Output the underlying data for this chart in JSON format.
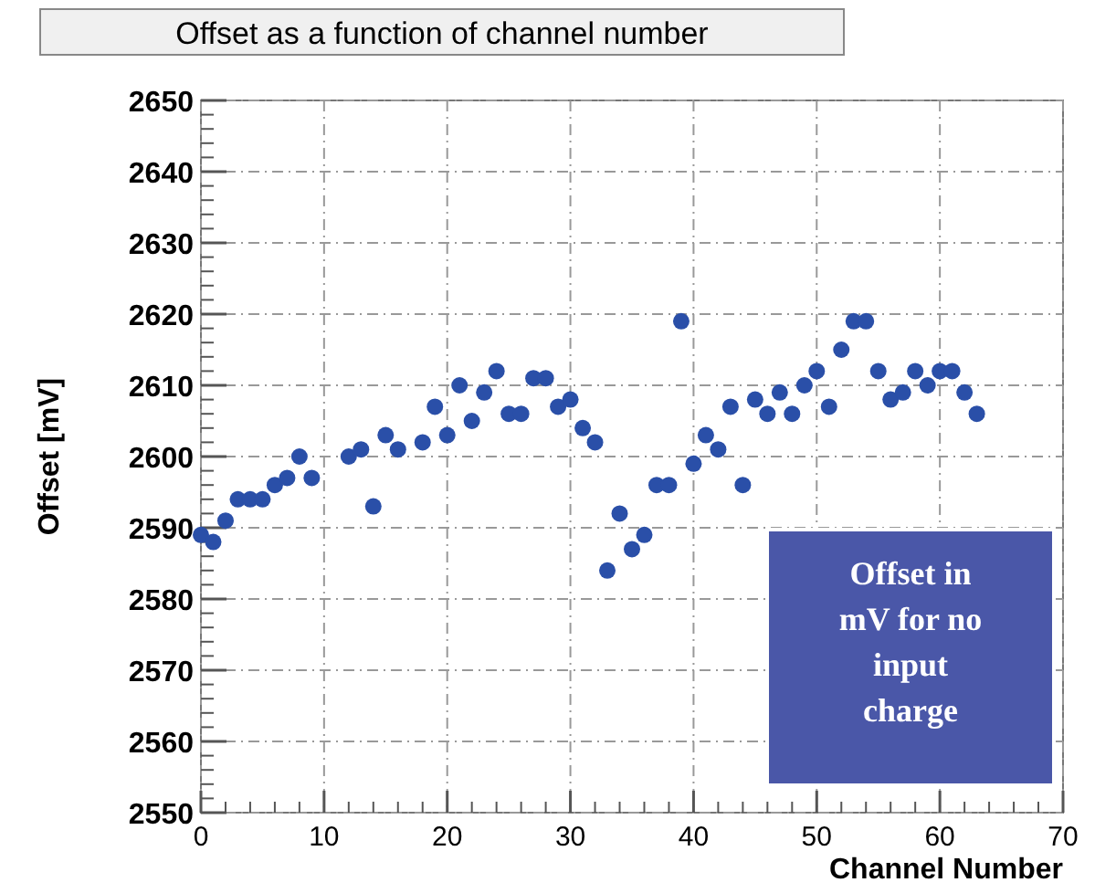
{
  "chart_data": {
    "type": "scatter",
    "title": "Offset as a function of channel number",
    "xlabel": "Channel Number",
    "ylabel": "Offset [mV]",
    "x": [
      0,
      1,
      2,
      3,
      4,
      5,
      6,
      7,
      8,
      9,
      12,
      13,
      14,
      15,
      16,
      18,
      19,
      20,
      21,
      22,
      23,
      24,
      25,
      26,
      27,
      28,
      29,
      30,
      31,
      32,
      33,
      34,
      35,
      36,
      37,
      38,
      39,
      40,
      41,
      42,
      43,
      44,
      45,
      46,
      47,
      48,
      49,
      50,
      51,
      52,
      53,
      54,
      55,
      56,
      57,
      58,
      59,
      60,
      61,
      62,
      63
    ],
    "series": [
      {
        "color": "#2a4fa8",
        "values": [
          2589,
          2588,
          2591,
          2594,
          2594,
          2594,
          2596,
          2597,
          2600,
          2597,
          2600,
          2601,
          2593,
          2603,
          2601,
          2602,
          2607,
          2603,
          2610,
          2605,
          2609,
          2612,
          2606,
          2606,
          2611,
          2611,
          2607,
          2608,
          2604,
          2602,
          2584,
          2592,
          2587,
          2589,
          2596,
          2596,
          2619,
          2599,
          2603,
          2601,
          2607,
          2596,
          2608,
          2606,
          2609,
          2606,
          2610,
          2612,
          2607,
          2615,
          2619,
          2619,
          2612,
          2608,
          2609,
          2612,
          2610,
          2612,
          2612,
          2609,
          2606
        ]
      }
    ],
    "xlim": [
      0,
      70
    ],
    "xticks": [
      0,
      10,
      20,
      30,
      40,
      50,
      60,
      70
    ],
    "ylim": [
      2550,
      2650
    ],
    "yticks": [
      2550,
      2560,
      2570,
      2580,
      2590,
      2600,
      2610,
      2620,
      2630,
      2640,
      2650
    ],
    "grid": true,
    "marker": "circle",
    "annotations": [
      "Offset in mV for no input charge"
    ]
  }
}
